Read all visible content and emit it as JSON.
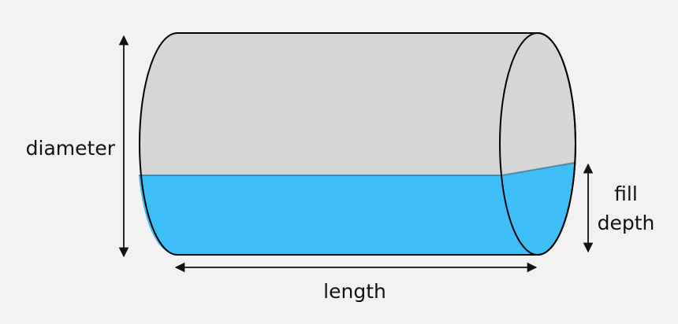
{
  "labels": {
    "diameter": "diameter",
    "length": "length",
    "fill_line1": "fill",
    "fill_line2": "depth"
  },
  "colors": {
    "background": "#f2f2f2",
    "tank_body": "#d6d6d6",
    "liquid": "#3dbef7",
    "outline": "#000000",
    "surface_line": "#4a8aa8",
    "arrow": "#111111"
  }
}
